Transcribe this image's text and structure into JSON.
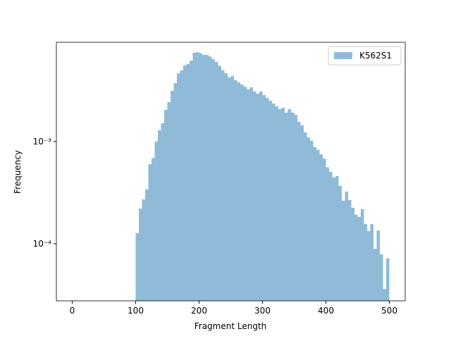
{
  "chart_data": {
    "type": "histogram",
    "xlabel": "Fragment Length",
    "ylabel": "Frequency",
    "bins": [
      100,
      105,
      110,
      115,
      120,
      125,
      130,
      135,
      140,
      145,
      150,
      155,
      160,
      165,
      170,
      175,
      180,
      185,
      190,
      195,
      200,
      205,
      210,
      215,
      220,
      225,
      230,
      235,
      240,
      245,
      250,
      255,
      260,
      265,
      270,
      275,
      280,
      285,
      290,
      295,
      300,
      305,
      310,
      315,
      320,
      325,
      330,
      335,
      340,
      345,
      350,
      355,
      360,
      365,
      370,
      375,
      380,
      385,
      390,
      395,
      400,
      405,
      410,
      415,
      420,
      425,
      430,
      435,
      440,
      445,
      450,
      455,
      460,
      465,
      470,
      475,
      480,
      485,
      490,
      495,
      500
    ],
    "series": [
      {
        "name": "K562S1",
        "color": "#8fbbd9",
        "values": [
          0.000127,
          0.000221,
          0.000272,
          0.00034,
          0.0006,
          0.00069,
          0.001,
          0.00129,
          0.00151,
          0.00204,
          0.00243,
          0.00314,
          0.00373,
          0.00467,
          0.00497,
          0.00556,
          0.00574,
          0.0062,
          0.0074,
          0.0075,
          0.0073,
          0.00705,
          0.00705,
          0.0068,
          0.0064,
          0.006,
          0.0055,
          0.005,
          0.00467,
          0.00424,
          0.00438,
          0.00398,
          0.0038,
          0.00362,
          0.00345,
          0.00324,
          0.0034,
          0.00309,
          0.00294,
          0.00309,
          0.00285,
          0.00268,
          0.00251,
          0.00236,
          0.00221,
          0.00208,
          0.00214,
          0.00192,
          0.00208,
          0.00192,
          0.00183,
          0.00156,
          0.00144,
          0.00123,
          0.0011,
          0.00102,
          0.00088,
          0.00083,
          0.00075,
          0.00068,
          0.00056,
          0.000505,
          0.000445,
          0.00046,
          0.000368,
          0.000263,
          0.000324,
          0.000267,
          0.000225,
          0.000192,
          0.000183,
          0.000218,
          0.000156,
          0.000133,
          0.000156,
          8.9e-05,
          0.000135,
          7.9e-05,
          3.6e-05,
          7.2e-05
        ]
      }
    ],
    "xlim": [
      -25,
      525
    ],
    "xticks": [
      0,
      100,
      200,
      300,
      400,
      500
    ],
    "ylim": [
      2.76e-05,
      0.00937
    ],
    "log_y": true,
    "yticks": [
      {
        "value": 0.0001,
        "label": "10⁻⁴"
      },
      {
        "value": 0.001,
        "label": "10⁻³"
      }
    ],
    "legend": "upper right"
  }
}
